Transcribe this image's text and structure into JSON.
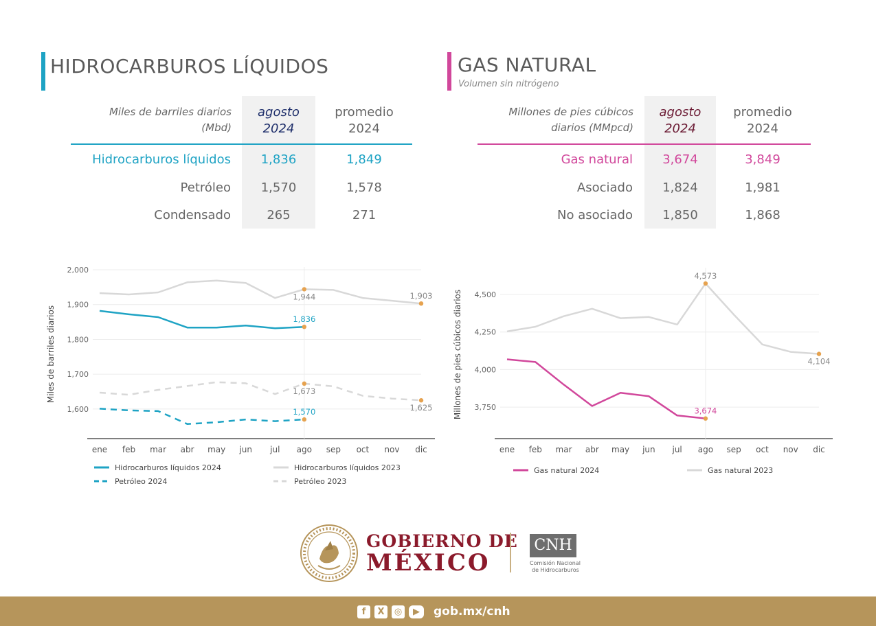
{
  "colors": {
    "teal": "#1ea3c4",
    "pink": "#d1479b",
    "navy": "#1f2f6b",
    "maroon": "#6b1b34",
    "gray_line": "#d8d8d8",
    "marker": "#e6a24f",
    "footer_gold": "#b6955b",
    "gob_red": "#8b1a2b"
  },
  "liquidos": {
    "title": "HIDROCARBUROS LÍQUIDOS",
    "unit_line1": "Miles de barriles diarios",
    "unit_line2": "(Mbd)",
    "col_month_l1": "agosto",
    "col_month_l2": "2024",
    "col_avg_l1": "promedio",
    "col_avg_l2": "2024",
    "rows": [
      {
        "label": "Hidrocarburos líquidos",
        "month": "1,836",
        "avg": "1,849"
      },
      {
        "label": "Petróleo",
        "month": "1,570",
        "avg": "1,578"
      },
      {
        "label": "Condensado",
        "month": "265",
        "avg": "271"
      }
    ]
  },
  "gas": {
    "title": "GAS NATURAL",
    "subtitle": "Volumen sin nitrógeno",
    "unit_line1": "Millones de pies cúbicos",
    "unit_line2": "diarios (MMpcd)",
    "col_month_l1": "agosto",
    "col_month_l2": "2024",
    "col_avg_l1": "promedio",
    "col_avg_l2": "2024",
    "rows": [
      {
        "label": "Gas natural",
        "month": "3,674",
        "avg": "3,849"
      },
      {
        "label": "Asociado",
        "month": "1,824",
        "avg": "1,981"
      },
      {
        "label": "No asociado",
        "month": "1,850",
        "avg": "1,868"
      }
    ]
  },
  "chart_data": [
    {
      "type": "line",
      "ylabel": "Miles de barriles diarios",
      "ylim": [
        1515,
        2000
      ],
      "yticks": [
        1600,
        1700,
        1800,
        1900,
        2000
      ],
      "ytick_labels": [
        "1,600",
        "1,700",
        "1,800",
        "1,900",
        "2,000"
      ],
      "categories": [
        "ene",
        "feb",
        "mar",
        "abr",
        "may",
        "jun",
        "jul",
        "ago",
        "sep",
        "oct",
        "nov",
        "dic"
      ],
      "grid": true,
      "legend_position": "bottom",
      "series": [
        {
          "name": "Hidrocarburos líquidos 2024",
          "style": "solid",
          "color": "#1ea3c4",
          "values": [
            1882,
            1872,
            1864,
            1834,
            1834,
            1840,
            1832,
            1836,
            null,
            null,
            null,
            null
          ]
        },
        {
          "name": "Hidrocarburos líquidos 2023",
          "style": "solid",
          "color": "#d8d8d8",
          "values": [
            1933,
            1929,
            1935,
            1964,
            1969,
            1962,
            1919,
            1944,
            1942,
            1919,
            1911,
            1903
          ]
        },
        {
          "name": "Petróleo 2024",
          "style": "dashed",
          "color": "#1ea3c4",
          "values": [
            1601,
            1596,
            1594,
            1557,
            1562,
            1570,
            1565,
            1570,
            null,
            null,
            null,
            null
          ]
        },
        {
          "name": "Petróleo 2023",
          "style": "dashed",
          "color": "#d8d8d8",
          "values": [
            1647,
            1641,
            1655,
            1666,
            1677,
            1674,
            1643,
            1673,
            1665,
            1638,
            1630,
            1625
          ]
        }
      ],
      "annotations": [
        {
          "series": 1,
          "index": 7,
          "label": "1,944",
          "color": "#888888",
          "pos": "below"
        },
        {
          "series": 1,
          "index": 11,
          "label": "1,903",
          "color": "#888888",
          "pos": "above"
        },
        {
          "series": 0,
          "index": 7,
          "label": "1,836",
          "color": "#1ea3c4",
          "pos": "above"
        },
        {
          "series": 3,
          "index": 7,
          "label": "1,673",
          "color": "#888888",
          "pos": "below"
        },
        {
          "series": 3,
          "index": 11,
          "label": "1,625",
          "color": "#888888",
          "pos": "below"
        },
        {
          "series": 2,
          "index": 7,
          "label": "1,570",
          "color": "#1ea3c4",
          "pos": "above"
        }
      ]
    },
    {
      "type": "line",
      "ylabel": "Millones de pies cúbicos diarios",
      "ylim": [
        3540,
        4660
      ],
      "yticks": [
        3750,
        4000,
        4250,
        4500
      ],
      "ytick_labels": [
        "3,750",
        "4,000",
        "4,250",
        "4,500"
      ],
      "categories": [
        "ene",
        "feb",
        "mar",
        "abr",
        "may",
        "jun",
        "jul",
        "ago",
        "sep",
        "oct",
        "nov",
        "dic"
      ],
      "grid": true,
      "legend_position": "bottom",
      "series": [
        {
          "name": "Gas natural 2024",
          "style": "solid",
          "color": "#d1479b",
          "values": [
            4068,
            4050,
            3900,
            3757,
            3845,
            3822,
            3694,
            3674,
            null,
            null,
            null,
            null
          ]
        },
        {
          "name": "Gas natural 2023",
          "style": "solid",
          "color": "#d8d8d8",
          "values": [
            4254,
            4285,
            4355,
            4405,
            4342,
            4350,
            4300,
            4573,
            4365,
            4167,
            4118,
            4104
          ]
        }
      ],
      "annotations": [
        {
          "series": 1,
          "index": 7,
          "label": "4,573",
          "color": "#888888",
          "pos": "above"
        },
        {
          "series": 1,
          "index": 11,
          "label": "4,104",
          "color": "#888888",
          "pos": "below"
        },
        {
          "series": 0,
          "index": 7,
          "label": "3,674",
          "color": "#d1479b",
          "pos": "above"
        }
      ]
    }
  ],
  "footer": {
    "gob_line1": "GOBIERNO DE",
    "gob_line2": "MÉXICO",
    "cnh_logo": "CNH",
    "cnh_line1": "Comisión Nacional",
    "cnh_line2": "de Hidrocarburos",
    "seal_icon": "mexico-seal-icon",
    "social_icons": [
      "facebook-icon",
      "x-icon",
      "instagram-icon",
      "youtube-icon"
    ],
    "website": "gob.mx/cnh"
  }
}
